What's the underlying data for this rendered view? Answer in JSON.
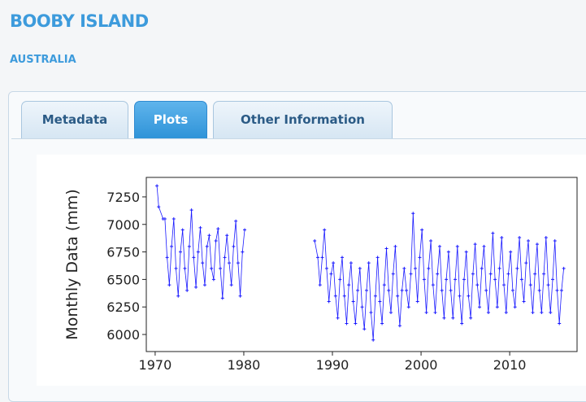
{
  "header": {
    "title": "BOOBY ISLAND",
    "subtitle": "AUSTRALIA"
  },
  "tabs": [
    "Metadata",
    "Plots",
    "Other Information"
  ],
  "active_tab": 1,
  "chart_data": {
    "type": "line",
    "y_label": "Monthly Data (mm)",
    "color": "#1a1aff",
    "xlim": [
      1969,
      2017.6
    ],
    "ylim": [
      5845,
      7427
    ],
    "xticks": [
      1970,
      1980,
      1990,
      2000,
      2010
    ],
    "yticks": [
      6000,
      6250,
      6500,
      6750,
      7000,
      7250
    ],
    "x": [
      1970.2,
      1970.4,
      1970.9,
      1971.1,
      1971.35,
      1971.6,
      1971.85,
      1972.1,
      1972.35,
      1972.6,
      1972.85,
      1973.1,
      1973.35,
      1973.6,
      1973.85,
      1974.1,
      1974.35,
      1974.6,
      1974.85,
      1975.1,
      1975.35,
      1975.6,
      1975.85,
      1976.1,
      1976.35,
      1976.6,
      1976.85,
      1977.1,
      1977.35,
      1977.6,
      1977.85,
      1978.1,
      1978.35,
      1978.6,
      1978.85,
      1979.1,
      1979.35,
      1979.6,
      1979.85,
      1980.1,
      null,
      1988.0,
      1988.35,
      1988.6,
      1988.85,
      1989.1,
      1989.35,
      1989.6,
      1989.85,
      1990.1,
      1990.35,
      1990.6,
      1990.85,
      1991.1,
      1991.35,
      1991.6,
      1991.85,
      1992.1,
      1992.35,
      1992.6,
      1992.85,
      1993.1,
      1993.35,
      1993.6,
      1993.85,
      1994.1,
      1994.35,
      1994.6,
      1994.85,
      1995.1,
      1995.35,
      1995.6,
      1995.85,
      1996.1,
      1996.35,
      1996.6,
      1996.85,
      1997.1,
      1997.35,
      1997.6,
      1997.85,
      1998.1,
      1998.35,
      1998.6,
      1998.85,
      1999.1,
      1999.35,
      1999.6,
      1999.85,
      2000.1,
      2000.35,
      2000.6,
      2000.85,
      2001.1,
      2001.35,
      2001.6,
      2001.85,
      2002.1,
      2002.35,
      2002.6,
      2002.85,
      2003.1,
      2003.35,
      2003.6,
      2003.85,
      2004.1,
      2004.35,
      2004.6,
      2004.85,
      2005.1,
      2005.35,
      2005.6,
      2005.85,
      2006.1,
      2006.35,
      2006.6,
      2006.85,
      2007.1,
      2007.35,
      2007.6,
      2007.85,
      2008.1,
      2008.35,
      2008.6,
      2008.85,
      2009.1,
      2009.35,
      2009.6,
      2009.85,
      2010.1,
      2010.35,
      2010.6,
      2010.85,
      2011.1,
      2011.35,
      2011.6,
      2011.85,
      2012.1,
      2012.35,
      2012.6,
      2012.85,
      2013.1,
      2013.35,
      2013.6,
      2013.85,
      2014.1,
      2014.35,
      2014.6,
      2014.85,
      2015.1,
      2015.35,
      2015.6,
      2015.85,
      2016.1
    ],
    "values": [
      7350,
      7160,
      7050,
      7050,
      6700,
      6450,
      6800,
      7050,
      6600,
      6350,
      6750,
      6950,
      6600,
      6400,
      6800,
      7130,
      6700,
      6430,
      6750,
      6970,
      6650,
      6450,
      6800,
      6900,
      6600,
      6500,
      6850,
      6960,
      6600,
      6330,
      6700,
      6900,
      6650,
      6450,
      6800,
      7030,
      6650,
      6350,
      6750,
      6950,
      null,
      6850,
      6700,
      6450,
      6700,
      6950,
      6600,
      6300,
      6550,
      6650,
      6350,
      6150,
      6500,
      6700,
      6350,
      6100,
      6450,
      6650,
      6300,
      6100,
      6400,
      6600,
      6250,
      6050,
      6400,
      6650,
      6200,
      5950,
      6350,
      6700,
      6300,
      6100,
      6450,
      6780,
      6400,
      6200,
      6550,
      6800,
      6350,
      6080,
      6400,
      6600,
      6400,
      6250,
      6550,
      7100,
      6600,
      6300,
      6700,
      6950,
      6500,
      6200,
      6600,
      6850,
      6450,
      6200,
      6550,
      6800,
      6400,
      6150,
      6500,
      6750,
      6400,
      6150,
      6500,
      6800,
      6350,
      6100,
      6500,
      6750,
      6350,
      6150,
      6550,
      6820,
      6450,
      6250,
      6600,
      6800,
      6400,
      6200,
      6550,
      6920,
      6500,
      6250,
      6600,
      6880,
      6450,
      6200,
      6550,
      6750,
      6400,
      6250,
      6600,
      6880,
      6500,
      6300,
      6650,
      6850,
      6450,
      6200,
      6550,
      6820,
      6400,
      6200,
      6550,
      6880,
      6450,
      6200,
      6500,
      6850,
      6400,
      6100,
      6400,
      6600
    ]
  }
}
